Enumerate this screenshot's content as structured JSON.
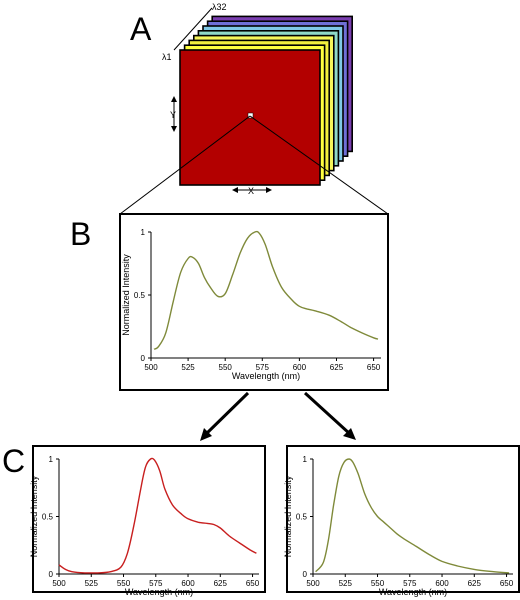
{
  "panel_labels": {
    "a": "A",
    "b": "B",
    "c": "C"
  },
  "cube": {
    "lambda_first": "λ1",
    "lambda_last": "λ32",
    "y_label": "Y",
    "x_label": "X",
    "slice_colors": [
      "#7a3fb0",
      "#6f6fd6",
      "#7fc8e6",
      "#8fd8c8",
      "#f5f55a",
      "#f2ef3e",
      "#ffff40",
      "#b30000"
    ]
  },
  "colors": {
    "olive": "#7f8a3a",
    "red": "#c81f1f",
    "frame": "#000000"
  },
  "chart_data": [
    {
      "id": "B",
      "type": "line",
      "xlabel": "Wavelength (nm)",
      "ylabel": "Normalized Intensity",
      "xlim": [
        500,
        655
      ],
      "ylim": [
        0,
        1
      ],
      "xticks": [
        "500",
        "525",
        "550",
        "575",
        "600",
        "625",
        "650"
      ],
      "yticks": [
        "0",
        "0.5",
        "1"
      ],
      "series": [
        {
          "color": "#7f8a3a",
          "x": [
            502,
            505,
            510,
            515,
            520,
            525,
            528,
            532,
            536,
            540,
            545,
            550,
            555,
            560,
            565,
            570,
            573,
            577,
            582,
            588,
            595,
            600,
            605,
            612,
            620,
            628,
            635,
            642,
            650,
            653
          ],
          "y": [
            0.07,
            0.09,
            0.2,
            0.45,
            0.68,
            0.79,
            0.8,
            0.75,
            0.64,
            0.56,
            0.49,
            0.51,
            0.66,
            0.83,
            0.95,
            1.0,
            0.99,
            0.9,
            0.72,
            0.56,
            0.46,
            0.41,
            0.39,
            0.37,
            0.34,
            0.29,
            0.24,
            0.2,
            0.16,
            0.15
          ]
        }
      ]
    },
    {
      "id": "C-left",
      "type": "line",
      "xlabel": "Wavelength (nm)",
      "ylabel": "Normalized Intensity",
      "xlim": [
        500,
        655
      ],
      "ylim": [
        0,
        1
      ],
      "xticks": [
        "500",
        "525",
        "550",
        "575",
        "600",
        "625",
        "650"
      ],
      "yticks": [
        "0",
        "0.5",
        "1"
      ],
      "series": [
        {
          "color": "#c81f1f",
          "x": [
            500,
            505,
            510,
            520,
            530,
            540,
            548,
            553,
            558,
            563,
            567,
            571,
            574,
            578,
            582,
            588,
            595,
            600,
            608,
            615,
            620,
            625,
            632,
            640,
            648,
            653
          ],
          "y": [
            0.08,
            0.04,
            0.02,
            0.01,
            0.01,
            0.02,
            0.06,
            0.18,
            0.42,
            0.72,
            0.93,
            1.0,
            0.99,
            0.9,
            0.74,
            0.6,
            0.52,
            0.48,
            0.45,
            0.44,
            0.43,
            0.4,
            0.33,
            0.27,
            0.21,
            0.18
          ]
        }
      ]
    },
    {
      "id": "C-right",
      "type": "line",
      "xlabel": "Wavelength (nm)",
      "ylabel": "Normalized Intensity",
      "xlim": [
        500,
        655
      ],
      "ylim": [
        0,
        1
      ],
      "xticks": [
        "500",
        "525",
        "550",
        "575",
        "600",
        "625",
        "650"
      ],
      "yticks": [
        "0",
        "0.5",
        "1"
      ],
      "series": [
        {
          "color": "#7f8a3a",
          "x": [
            502,
            508,
            512,
            516,
            520,
            524,
            528,
            531,
            535,
            540,
            545,
            550,
            555,
            560,
            565,
            570,
            580,
            590,
            600,
            612,
            625,
            640,
            652
          ],
          "y": [
            0.02,
            0.1,
            0.3,
            0.6,
            0.85,
            0.97,
            1.0,
            0.97,
            0.87,
            0.7,
            0.58,
            0.5,
            0.45,
            0.4,
            0.35,
            0.31,
            0.24,
            0.17,
            0.11,
            0.07,
            0.04,
            0.02,
            0.01
          ]
        }
      ]
    }
  ]
}
